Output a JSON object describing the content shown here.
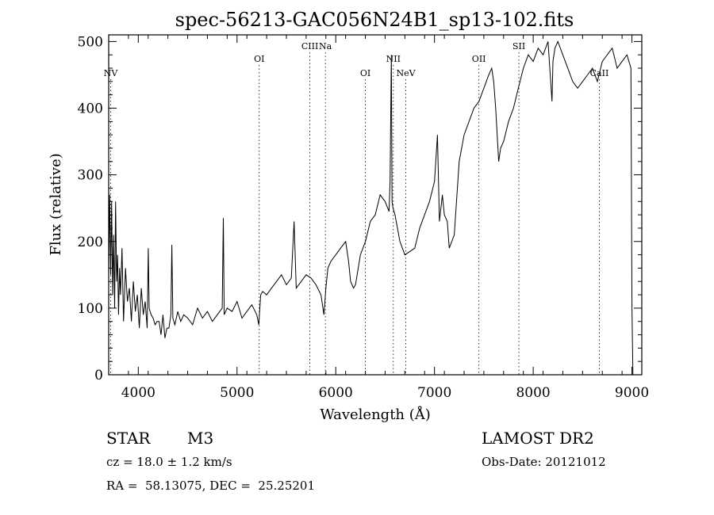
{
  "chart_data": {
    "type": "line",
    "title": "spec-56213-GAC056N24B1_sp13-102.fits",
    "xlabel": "Wavelength (Å)",
    "ylabel": "Flux (relative)",
    "xlim": [
      3700,
      9100
    ],
    "ylim": [
      0,
      510
    ],
    "xticks": [
      "4000",
      "5000",
      "6000",
      "7000",
      "8000",
      "9000"
    ],
    "yticks": [
      "0",
      "100",
      "200",
      "300",
      "400",
      "500"
    ],
    "grid": false,
    "series": [
      {
        "x": [
          3700,
          3710,
          3720,
          3730,
          3740,
          3750,
          3760,
          3770,
          3780,
          3790,
          3800,
          3810,
          3820,
          3835,
          3850,
          3870,
          3890,
          3910,
          3930,
          3950,
          3970,
          3990,
          4010,
          4030,
          4050,
          4070,
          4090,
          4101,
          4110,
          4130,
          4150,
          4170,
          4190,
          4210,
          4230,
          4250,
          4270,
          4290,
          4310,
          4330,
          4340,
          4350,
          4370,
          4400,
          4430,
          4460,
          4500,
          4550,
          4600,
          4650,
          4700,
          4750,
          4800,
          4850,
          4861,
          4870,
          4900,
          4950,
          5000,
          5050,
          5100,
          5150,
          5200,
          5220,
          5240,
          5260,
          5300,
          5350,
          5400,
          5450,
          5500,
          5550,
          5578,
          5600,
          5650,
          5700,
          5750,
          5800,
          5850,
          5880,
          5900,
          5920,
          5950,
          6000,
          6050,
          6100,
          6130,
          6150,
          6180,
          6200,
          6250,
          6300,
          6350,
          6400,
          6450,
          6500,
          6540,
          6550,
          6563,
          6570,
          6580,
          6600,
          6650,
          6700,
          6750,
          6800,
          6850,
          6900,
          6950,
          7000,
          7030,
          7050,
          7080,
          7100,
          7130,
          7150,
          7200,
          7250,
          7300,
          7350,
          7400,
          7450,
          7500,
          7550,
          7580,
          7600,
          7620,
          7650,
          7670,
          7700,
          7750,
          7800,
          7850,
          7900,
          7950,
          8000,
          8050,
          8100,
          8150,
          8190,
          8200,
          8220,
          8250,
          8300,
          8350,
          8400,
          8450,
          8500,
          8550,
          8600,
          8650,
          8700,
          8750,
          8800,
          8850,
          8900,
          8950,
          8990,
          9000,
          9010
        ],
        "y": [
          150,
          270,
          150,
          260,
          120,
          210,
          100,
          260,
          140,
          180,
          90,
          160,
          120,
          190,
          80,
          160,
          110,
          130,
          80,
          140,
          95,
          120,
          70,
          130,
          90,
          110,
          70,
          190,
          100,
          90,
          85,
          75,
          80,
          80,
          60,
          90,
          55,
          70,
          70,
          90,
          195,
          85,
          75,
          95,
          80,
          90,
          85,
          75,
          100,
          85,
          95,
          80,
          90,
          100,
          235,
          90,
          100,
          95,
          110,
          85,
          95,
          105,
          90,
          75,
          120,
          125,
          120,
          130,
          140,
          150,
          135,
          145,
          230,
          130,
          140,
          150,
          145,
          135,
          120,
          90,
          130,
          160,
          170,
          180,
          190,
          200,
          170,
          140,
          130,
          135,
          180,
          200,
          230,
          240,
          270,
          260,
          245,
          290,
          480,
          260,
          250,
          240,
          200,
          180,
          185,
          190,
          220,
          240,
          260,
          290,
          360,
          230,
          270,
          240,
          230,
          190,
          210,
          320,
          360,
          380,
          400,
          410,
          430,
          450,
          460,
          440,
          400,
          320,
          340,
          350,
          380,
          400,
          430,
          460,
          480,
          470,
          490,
          480,
          500,
          410,
          470,
          490,
          500,
          480,
          460,
          440,
          430,
          440,
          450,
          460,
          440,
          470,
          480,
          490,
          460,
          470,
          480,
          460,
          100,
          0
        ]
      }
    ],
    "line_markers": [
      {
        "label": "NV",
        "x": 3720,
        "row": 3
      },
      {
        "label": "OI",
        "x": 5225,
        "row": 1
      },
      {
        "label": "CIII",
        "x": 5738,
        "row": 0
      },
      {
        "label": "Na",
        "x": 5895,
        "row": 0
      },
      {
        "label": "OI",
        "x": 6300,
        "row": 3
      },
      {
        "label": "NII",
        "x": 6583,
        "row": 1
      },
      {
        "label": "NeV",
        "x": 6710,
        "row": 3
      },
      {
        "label": "OII",
        "x": 7450,
        "row": 1
      },
      {
        "label": "SII",
        "x": 7855,
        "row": 0
      },
      {
        "label": "CaII",
        "x": 8670,
        "row": 3
      }
    ]
  },
  "info": {
    "class_label": "STAR",
    "subclass": "M3",
    "survey": "LAMOST DR2",
    "cz": "cz = 18.0 ± 1.2 km/s",
    "obs_date": "Obs-Date: 20121012",
    "radec": "RA =  58.13075, DEC =  25.25201"
  }
}
